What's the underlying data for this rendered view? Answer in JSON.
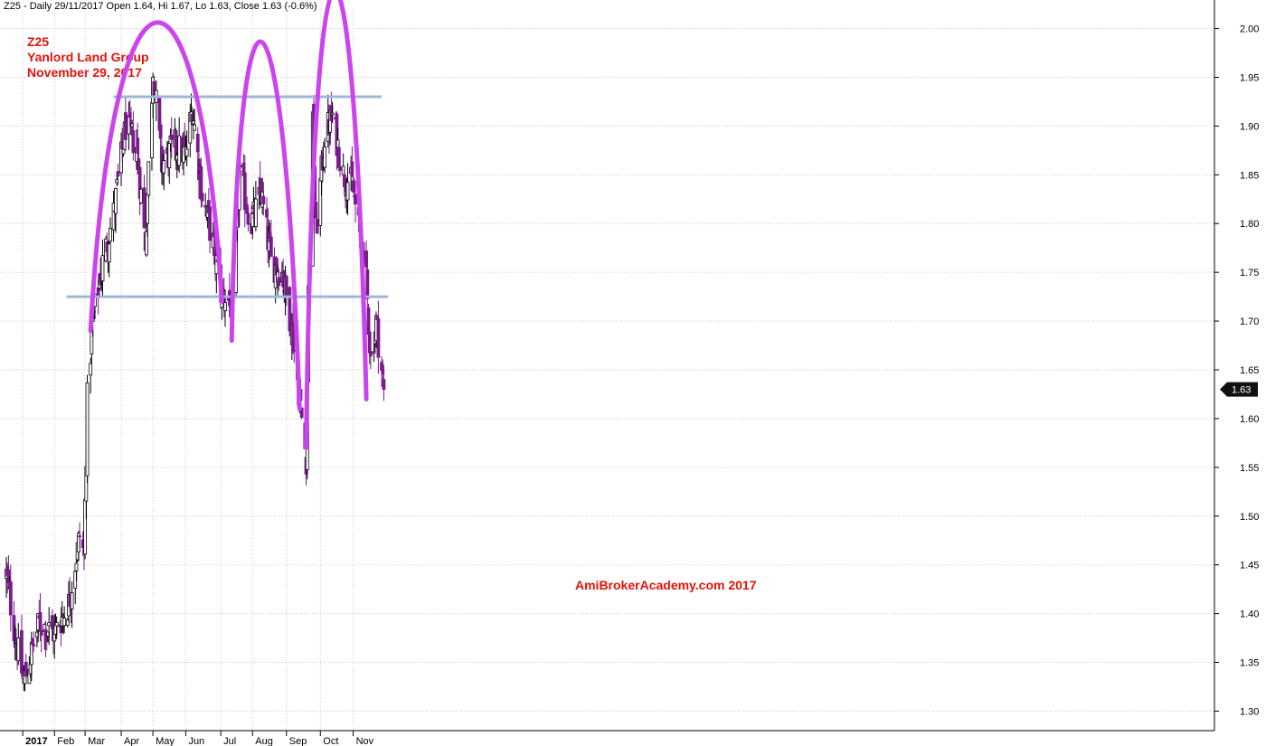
{
  "header": {
    "info": "Z25 - Daily 29/11/2017 Open 1.64, Hi 1.67, Lo 1.63, Close 1.63 (-0.6%)"
  },
  "title": {
    "line1": "Z25",
    "line2": "Yanlord Land Group",
    "line3": "November 29, 2017"
  },
  "watermark": "AmiBrokerAcademy.com  2017",
  "colors": {
    "background": "#ffffff",
    "title_text": "#e3120b",
    "bull_candle": "#ffffff",
    "bear_candle": "#7a1a8c",
    "wick": "#000000",
    "arc": "#cc44ee",
    "support_resistance": "#9fb6dc",
    "grid": "#c8c8c8",
    "price_tag_bg": "#111111"
  },
  "chart_data": {
    "type": "candlestick",
    "symbol": "Z25",
    "interval": "Daily",
    "ylim": [
      1.28,
      2.02
    ],
    "y_ticks": [
      "2.00",
      "1.95",
      "1.90",
      "1.85",
      "1.80",
      "1.75",
      "1.70",
      "1.65",
      "1.60",
      "1.55",
      "1.50",
      "1.45",
      "1.40",
      "1.35",
      "1.30"
    ],
    "x_ticks": [
      {
        "label": "2017",
        "date": "2017-01-03"
      },
      {
        "label": "Feb",
        "date": "2017-02-01"
      },
      {
        "label": "Mar",
        "date": "2017-03-01"
      },
      {
        "label": "Apr",
        "date": "2017-04-03"
      },
      {
        "label": "May",
        "date": "2017-05-02"
      },
      {
        "label": "Jun",
        "date": "2017-06-01"
      },
      {
        "label": "Jul",
        "date": "2017-07-03"
      },
      {
        "label": "Aug",
        "date": "2017-08-01"
      },
      {
        "label": "Sep",
        "date": "2017-09-01"
      },
      {
        "label": "Oct",
        "date": "2017-10-02"
      },
      {
        "label": "Nov",
        "date": "2017-11-01"
      }
    ],
    "last_price": "1.63",
    "date_range": [
      "2016-12-19",
      "2017-11-29"
    ],
    "close_anchors": [
      [
        "2016-12-19",
        1.44
      ],
      [
        "2016-12-28",
        1.37
      ],
      [
        "2017-01-04",
        1.33
      ],
      [
        "2017-01-18",
        1.39
      ],
      [
        "2017-02-01",
        1.38
      ],
      [
        "2017-02-14",
        1.41
      ],
      [
        "2017-02-24",
        1.48
      ],
      [
        "2017-02-28",
        1.46
      ],
      [
        "2017-03-03",
        1.62
      ],
      [
        "2017-03-08",
        1.7
      ],
      [
        "2017-03-17",
        1.76
      ],
      [
        "2017-03-27",
        1.81
      ],
      [
        "2017-04-07",
        1.9
      ],
      [
        "2017-04-17",
        1.88
      ],
      [
        "2017-04-25",
        1.78
      ],
      [
        "2017-05-02",
        1.96
      ],
      [
        "2017-05-10",
        1.86
      ],
      [
        "2017-05-22",
        1.88
      ],
      [
        "2017-06-01",
        1.87
      ],
      [
        "2017-06-07",
        1.92
      ],
      [
        "2017-06-16",
        1.83
      ],
      [
        "2017-06-26",
        1.78
      ],
      [
        "2017-07-03",
        1.73
      ],
      [
        "2017-07-11",
        1.72
      ],
      [
        "2017-07-14",
        1.71
      ],
      [
        "2017-07-20",
        1.85
      ],
      [
        "2017-07-31",
        1.8
      ],
      [
        "2017-08-09",
        1.83
      ],
      [
        "2017-08-18",
        1.76
      ],
      [
        "2017-08-28",
        1.75
      ],
      [
        "2017-09-05",
        1.7
      ],
      [
        "2017-09-11",
        1.64
      ],
      [
        "2017-09-15",
        1.6
      ],
      [
        "2017-09-19",
        1.56
      ],
      [
        "2017-09-21",
        1.73
      ],
      [
        "2017-09-25",
        1.9
      ],
      [
        "2017-09-28",
        1.79
      ],
      [
        "2017-10-06",
        1.89
      ],
      [
        "2017-10-13",
        1.91
      ],
      [
        "2017-10-23",
        1.85
      ],
      [
        "2017-10-31",
        1.84
      ],
      [
        "2017-11-08",
        1.78
      ],
      [
        "2017-11-13",
        1.74
      ],
      [
        "2017-11-17",
        1.66
      ],
      [
        "2017-11-22",
        1.7
      ],
      [
        "2017-11-29",
        1.63
      ]
    ],
    "annotations": {
      "horizontal_lines": [
        {
          "price": 1.93,
          "from": "2017-03-27",
          "to": "2017-11-27"
        },
        {
          "price": 1.725,
          "from": "2017-02-12",
          "to": "2017-12-03"
        }
      ],
      "arcs": [
        {
          "from": [
            "2017-03-06",
            1.69
          ],
          "peak": [
            "2017-05-05",
            1.925
          ],
          "to": [
            "2017-07-04",
            1.72
          ]
        },
        {
          "from": [
            "2017-07-13",
            1.68
          ],
          "peak": [
            "2017-07-31",
            1.89
          ],
          "to": [
            "2017-09-13",
            1.61
          ]
        },
        {
          "from": [
            "2017-09-19",
            1.57
          ],
          "peak": [
            "2017-10-09",
            1.93
          ],
          "to": [
            "2017-11-13",
            1.62
          ]
        }
      ]
    }
  }
}
